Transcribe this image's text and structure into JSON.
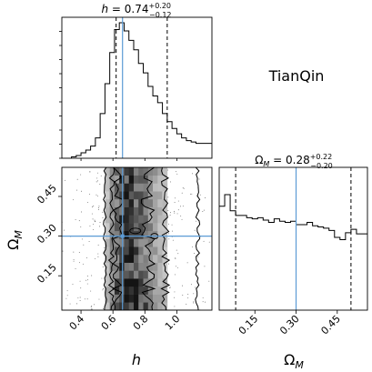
{
  "figure": {
    "kind": "corner-plot"
  },
  "chart_data": [
    {
      "type": "histogram",
      "panel": "marginal-h",
      "title_param": "h",
      "title_value": "0.74",
      "title_sup": "+0.20",
      "title_sub": "−0.12",
      "xlim": [
        0.28,
        1.22
      ],
      "bin_edges": [
        0.28,
        0.31,
        0.34,
        0.37,
        0.4,
        0.43,
        0.46,
        0.49,
        0.52,
        0.55,
        0.58,
        0.61,
        0.64,
        0.67,
        0.7,
        0.73,
        0.76,
        0.79,
        0.82,
        0.85,
        0.88,
        0.91,
        0.94,
        0.97,
        1.0,
        1.03,
        1.06,
        1.09,
        1.12,
        1.15,
        1.18,
        1.22
      ],
      "values": [
        0,
        0,
        0.01,
        0.02,
        0.04,
        0.06,
        0.09,
        0.15,
        0.33,
        0.55,
        0.78,
        0.95,
        1.0,
        0.94,
        0.87,
        0.8,
        0.7,
        0.63,
        0.53,
        0.46,
        0.41,
        0.33,
        0.27,
        0.22,
        0.18,
        0.15,
        0.13,
        0.12,
        0.11,
        0.11,
        0.11
      ],
      "quantiles": [
        0.62,
        0.94
      ],
      "truth": 0.66
    },
    {
      "type": "histogram",
      "panel": "marginal-omega",
      "title_param": "Ω",
      "title_param_sub": "M",
      "title_value": "0.28",
      "title_sup": "+0.22",
      "title_sub": "−0.20",
      "xlim": [
        0.02,
        0.56
      ],
      "bin_edges": [
        0.02,
        0.04,
        0.06,
        0.08,
        0.1,
        0.12,
        0.14,
        0.16,
        0.18,
        0.2,
        0.22,
        0.24,
        0.26,
        0.28,
        0.3,
        0.32,
        0.34,
        0.36,
        0.38,
        0.4,
        0.42,
        0.44,
        0.46,
        0.48,
        0.5,
        0.52,
        0.54,
        0.56
      ],
      "values": [
        0.9,
        1.0,
        0.86,
        0.82,
        0.82,
        0.8,
        0.79,
        0.8,
        0.78,
        0.76,
        0.79,
        0.77,
        0.76,
        0.77,
        0.74,
        0.74,
        0.76,
        0.73,
        0.72,
        0.71,
        0.69,
        0.63,
        0.61,
        0.67,
        0.7,
        0.66,
        0.66
      ],
      "quantiles": [
        0.08,
        0.5
      ],
      "truth": 0.3,
      "xticks": [
        "0.15",
        "0.30",
        "0.45"
      ],
      "xtick_values": [
        0.15,
        0.3,
        0.45
      ],
      "xlabel": "Ω",
      "xlabel_sub": "M"
    },
    {
      "type": "2d-density",
      "panel": "joint-h-omega",
      "xlim": [
        0.28,
        1.22
      ],
      "ylim": [
        0.02,
        0.56
      ],
      "x_columns": [
        0.565,
        0.595,
        0.625,
        0.655,
        0.685,
        0.715,
        0.745,
        0.775,
        0.805,
        0.835,
        0.865,
        0.895,
        0.925
      ],
      "column_density": [
        0.25,
        0.45,
        0.65,
        0.85,
        0.95,
        0.9,
        0.8,
        0.7,
        0.6,
        0.5,
        0.4,
        0.3,
        0.22
      ],
      "contour_levels_h": [
        {
          "level": "outer",
          "range": [
            0.55,
            1.13
          ]
        },
        {
          "level": "middle",
          "range": [
            0.59,
            0.93
          ]
        },
        {
          "level": "inner",
          "range": [
            0.63,
            0.82
          ]
        }
      ],
      "truth_x": 0.66,
      "truth_y": 0.3,
      "xticks": [
        "0.4",
        "0.6",
        "0.8",
        "1.0"
      ],
      "xtick_values": [
        0.4,
        0.6,
        0.8,
        1.0
      ],
      "yticks": [
        "0.15",
        "0.30",
        "0.45"
      ],
      "ytick_values": [
        0.15,
        0.3,
        0.45
      ],
      "xlabel": "h",
      "ylabel": "Ω",
      "ylabel_sub": "M"
    }
  ],
  "annotation": {
    "label": "TianQin"
  },
  "colors": {
    "truth": "#5b9bd5",
    "lines": "#000000",
    "density_dark": "#000000"
  }
}
